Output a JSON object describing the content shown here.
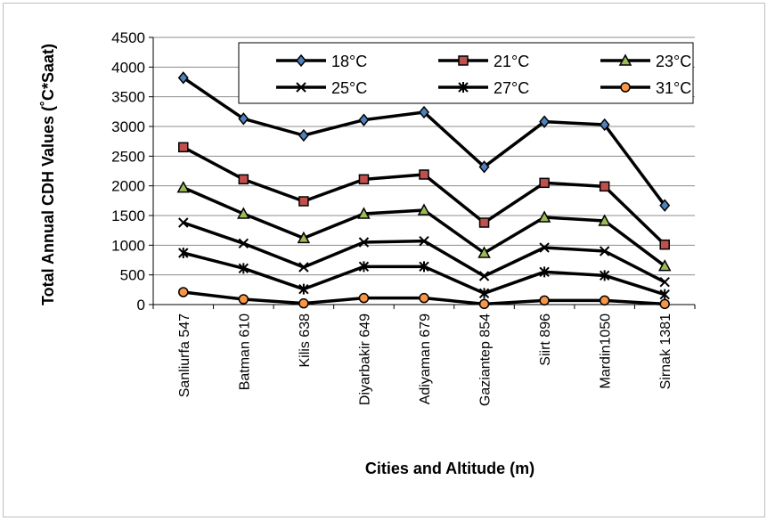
{
  "chart_data": {
    "type": "line",
    "categories": [
      "Sanliurfa 547",
      "Batman 610",
      "Kilis 638",
      "Diyarbakir 649",
      "Adiyaman 679",
      "Gaziantep 854",
      "Siirt 896",
      "Mardin1050",
      "Sirnak 1381"
    ],
    "title": "",
    "xlabel": "Cities and Altitude (m)",
    "ylabel": "Total Annual CDH Values (˚C*Saat)",
    "ylim": [
      0,
      4500
    ],
    "yticks": [
      "0",
      "500",
      "1000",
      "1500",
      "2000",
      "2500",
      "3000",
      "3500",
      "4000",
      "4500"
    ],
    "grid": true,
    "legend_position": "top-right",
    "series": [
      {
        "name": "18°C",
        "marker": "diamond",
        "marker_color": "#4f81bd",
        "values": [
          3820,
          3130,
          2850,
          3110,
          3240,
          2320,
          3080,
          3030,
          1670
        ]
      },
      {
        "name": "21°C",
        "marker": "square",
        "marker_color": "#c0504d",
        "values": [
          2650,
          2110,
          1740,
          2110,
          2190,
          1380,
          2050,
          1990,
          1010
        ]
      },
      {
        "name": "23°C",
        "marker": "triangle",
        "marker_color": "#9bbb59",
        "values": [
          1970,
          1530,
          1120,
          1530,
          1590,
          870,
          1470,
          1410,
          650
        ]
      },
      {
        "name": "25°C",
        "marker": "x",
        "marker_color": "#000000",
        "values": [
          1380,
          1030,
          630,
          1050,
          1070,
          480,
          960,
          900,
          380
        ]
      },
      {
        "name": "27°C",
        "marker": "star",
        "marker_color": "#000000",
        "values": [
          870,
          610,
          260,
          640,
          640,
          190,
          550,
          490,
          170
        ]
      },
      {
        "name": "31°C",
        "marker": "circle",
        "marker_color": "#f79646",
        "values": [
          210,
          90,
          20,
          110,
          110,
          10,
          70,
          70,
          10
        ]
      }
    ],
    "line_color": "#000000"
  }
}
